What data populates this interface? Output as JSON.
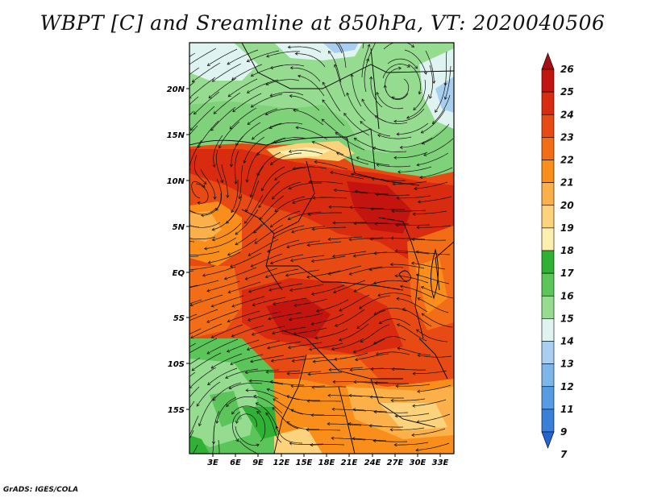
{
  "title": "WBPT [C] and Sreamline at 850hPa, VT: 2020040506",
  "footer": "GrADS: IGES/COLA",
  "map": {
    "lat_labels": [
      "20N",
      "15N",
      "10N",
      "5N",
      "EQ",
      "5S",
      "10S",
      "15S"
    ],
    "lon_labels": [
      "3E",
      "6E",
      "9E",
      "12E",
      "15E",
      "18E",
      "21E",
      "24E",
      "27E",
      "30E",
      "33E"
    ]
  },
  "colorbar": {
    "levels": [
      "26",
      "25",
      "24",
      "23",
      "22",
      "21",
      "20",
      "19",
      "18",
      "17",
      "16",
      "15",
      "14",
      "13",
      "12",
      "11",
      "9",
      "7"
    ],
    "colors": [
      "#a50f15",
      "#c4140f",
      "#d92b10",
      "#e84a13",
      "#f36d17",
      "#f98e1a",
      "#fbb04a",
      "#fdd27c",
      "#fbf0b0",
      "#2fb233",
      "#5cc55a",
      "#96dc90",
      "#dff4f0",
      "#a9cff0",
      "#7fb6ea",
      "#559ce2",
      "#3a7fd8",
      "#2464cf"
    ]
  }
}
